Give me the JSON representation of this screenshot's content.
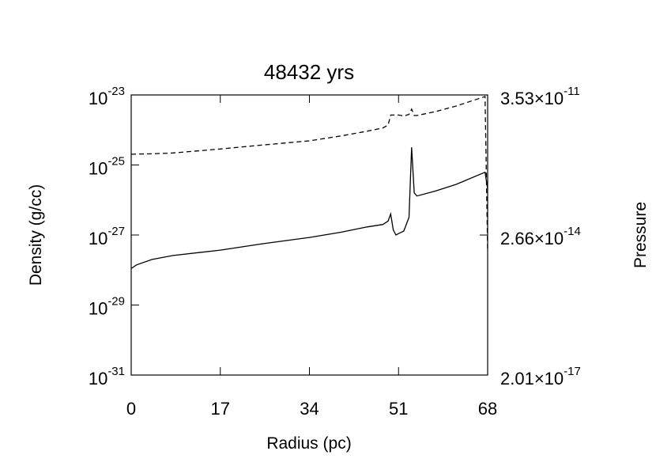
{
  "chart_data": {
    "type": "line",
    "title": "48432 yrs",
    "xlabel": "Radius (pc)",
    "ylabel": "Density (g/cc)",
    "y2label": "Pressure",
    "x": [
      0,
      1,
      4,
      8,
      17,
      25,
      34,
      40,
      45,
      48,
      49,
      49.5,
      50,
      50.5,
      51,
      52,
      53,
      53.5,
      54,
      54.5,
      58,
      62,
      67.5,
      68
    ],
    "series": [
      {
        "name": "Density",
        "color": "#000000",
        "linestyle": "solid",
        "values": [
          1.1e-28,
          1.4e-28,
          2e-28,
          2.6e-28,
          3.7e-28,
          5.6e-28,
          8.5e-28,
          1.2e-27,
          1.7e-27,
          2e-27,
          2.5e-27,
          4e-27,
          1.4e-27,
          1e-27,
          1.1e-27,
          1.3e-27,
          3.2e-27,
          3.2e-25,
          1.6e-26,
          1.3e-26,
          1.8e-26,
          2.8e-26,
          6.2e-26,
          2.1e-26
        ]
      },
      {
        "name": "Pressure",
        "color": "#000000",
        "linestyle": "dashed",
        "axis": "y2",
        "values": [
          1.68e-12,
          1.7e-12,
          1.72e-12,
          1.8e-12,
          2.2e-12,
          2.7e-12,
          3.35e-12,
          4.3e-12,
          5.5e-12,
          6.5e-12,
          7.5e-12,
          1.26e-11,
          1.26e-11,
          1.26e-11,
          1.26e-11,
          1.2e-11,
          1.3e-11,
          1.7e-11,
          1.23e-11,
          1.23e-11,
          1.5e-11,
          2e-11,
          3.26e-11,
          1.13e-14
        ]
      }
    ],
    "xlim": [
      0,
      68
    ],
    "xticks": [
      0,
      17,
      34,
      51,
      68
    ],
    "ylim": [
      1e-31,
      1e-23
    ],
    "ylog": true,
    "yticks": [
      {
        "value": 1e-23,
        "label": [
          "10",
          "-23"
        ]
      },
      {
        "value": 1e-25,
        "label": [
          "10",
          "-25"
        ]
      },
      {
        "value": 1e-27,
        "label": [
          "10",
          "-27"
        ]
      },
      {
        "value": 1e-29,
        "label": [
          "10",
          "-29"
        ]
      },
      {
        "value": 1e-31,
        "label": [
          "10",
          "-31"
        ]
      }
    ],
    "y2lim": [
      2.01e-17,
      3.53e-11
    ],
    "y2log": true,
    "y2ticks": [
      {
        "value": 3.53e-11,
        "label": [
          "3.53×10",
          "-11"
        ]
      },
      {
        "value": 2.66e-14,
        "label": [
          "2.66×10",
          "-14"
        ]
      },
      {
        "value": 2.01e-17,
        "label": [
          "2.01×10",
          "-17"
        ]
      }
    ]
  }
}
